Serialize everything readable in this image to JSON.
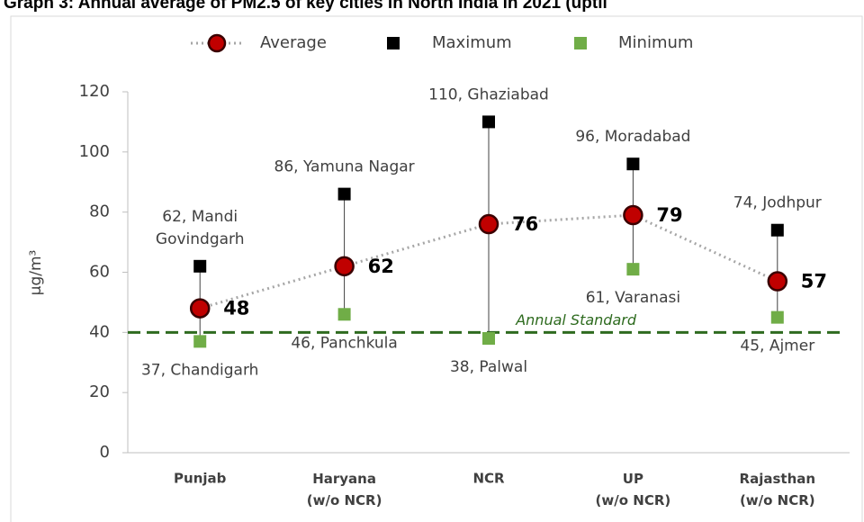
{
  "chart_data": {
    "type": "line",
    "title": "Graph 3: Annual average of PM2.5 of key cities in North India in 2021 (uptil",
    "ylabel": "µg/m³",
    "categories": [
      "Punjab",
      [
        "Haryana",
        "(w/o NCR)"
      ],
      "NCR",
      [
        "UP",
        "(w/o NCR)"
      ],
      [
        "Rajasthan",
        "(w/o NCR)"
      ]
    ],
    "series": [
      {
        "name": "Average",
        "color": "#c00000",
        "values": [
          48,
          62,
          76,
          79,
          57
        ]
      },
      {
        "name": "Maximum",
        "color": "#000000",
        "values": [
          62,
          86,
          110,
          96,
          74
        ],
        "value_labels": [
          [
            "62, Mandi",
            "Govindgarh"
          ],
          "86, Yamuna Nagar",
          "110, Ghaziabad",
          "96, Moradabad",
          "74, Jodhpur"
        ]
      },
      {
        "name": "Minimum",
        "color": "#70ad47",
        "values": [
          37,
          46,
          38,
          61,
          45
        ],
        "value_labels": [
          "37, Chandigarh",
          "46, Panchkula",
          "38, Palwal",
          "61, Varanasi",
          "45, Ajmer"
        ]
      }
    ],
    "reference_line": {
      "value": 40,
      "label": "Annual Standard",
      "color": "#2e6b1f"
    },
    "ylim": [
      0,
      120
    ],
    "yticks": [
      0,
      20,
      40,
      60,
      80,
      100,
      120
    ],
    "legend": "top"
  }
}
